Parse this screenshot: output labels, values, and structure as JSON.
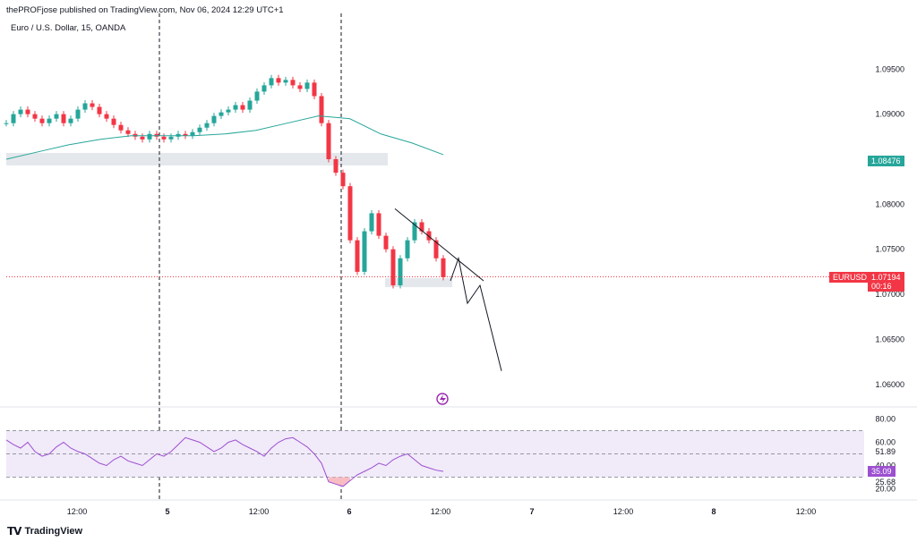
{
  "header": {
    "published": "thePROFjose published on TradingView.com, Nov 06, 2024 12:29 UTC+1",
    "symbol": "Euro / U.S. Dollar, 15, OANDA"
  },
  "footer": {
    "brand": "TradingView",
    "logo_icon": "tradingview-logo-icon"
  },
  "chart_data": [
    {
      "type": "line",
      "title": "",
      "subtitle": "Euro / U.S. Dollar, 15, OANDA",
      "x_ticks": [
        "12:00",
        "5",
        "12:00",
        "6",
        "12:00",
        "7",
        "12:00",
        "8",
        "12:00"
      ],
      "y_ticks": [
        "1.09500",
        "1.09000",
        "1.08000",
        "1.07500",
        "1.07000",
        "1.06500",
        "1.06000"
      ],
      "ylim": [
        1.0575,
        1.0985
      ],
      "session_markers": [
        "5",
        "6"
      ],
      "series": [
        {
          "kind": "candles",
          "values": [
            1.089,
            1.09,
            1.0905,
            1.09,
            1.0895,
            1.089,
            1.0895,
            1.09,
            1.089,
            1.0895,
            1.0905,
            1.0912,
            1.0908,
            1.09,
            1.0895,
            1.0888,
            1.0882,
            1.0878,
            1.0875,
            1.0872,
            1.0878,
            1.0875,
            1.0872,
            1.0875,
            1.0878,
            1.0876,
            1.088,
            1.0885,
            1.089,
            1.0898,
            1.0902,
            1.0905,
            1.091,
            1.0905,
            1.0915,
            1.0925,
            1.0932,
            1.094,
            1.0935,
            1.0938,
            1.0932,
            1.0928,
            1.0935,
            1.092,
            1.089,
            1.085,
            1.0835,
            1.082,
            1.076,
            1.0725,
            1.077,
            1.079,
            1.0765,
            1.075,
            1.071,
            1.074,
            1.076,
            1.078,
            1.077,
            1.076,
            1.074,
            1.0719
          ]
        },
        {
          "kind": "moving-average",
          "values": [
            1.085,
            1.0858,
            1.0866,
            1.0872,
            1.0876,
            1.0876,
            1.0876,
            1.0878,
            1.0882,
            1.089,
            1.0898,
            1.0895,
            1.0878,
            1.0868,
            1.0855
          ]
        }
      ],
      "last_price": {
        "label": "EURUSD",
        "value": "1.07194",
        "countdown": "00:16",
        "level": 1.07194
      },
      "ma_last": {
        "value": "1.08476",
        "level": 1.08476
      },
      "zones": [
        {
          "from": 1.0843,
          "to": 1.0857
        },
        {
          "from": 1.0708,
          "to": 1.0718
        }
      ],
      "projection_path": [
        1.0715,
        1.074,
        1.069,
        1.071,
        1.0615
      ],
      "trendline": {
        "start": 1.0795,
        "end": 1.0715
      },
      "colors": {
        "up": "#26a69a",
        "down": "#f23645",
        "ma": "#26a69a",
        "last_price": "#f23645",
        "zone": "#e4e8ec"
      }
    },
    {
      "type": "line",
      "title": "",
      "y_ticks": [
        "80.00",
        "60.00",
        "51.89",
        "40.00",
        "25.68",
        "20.00"
      ],
      "ylim": [
        15,
        85
      ],
      "band": [
        30,
        70
      ],
      "current_value": "35.09",
      "series": [
        {
          "kind": "rsi",
          "values": [
            62,
            58,
            55,
            60,
            52,
            48,
            50,
            56,
            60,
            55,
            52,
            50,
            46,
            42,
            40,
            45,
            48,
            44,
            42,
            40,
            45,
            50,
            48,
            52,
            58,
            64,
            62,
            60,
            56,
            52,
            55,
            60,
            62,
            58,
            55,
            52,
            48,
            55,
            60,
            63,
            64,
            60,
            56,
            50,
            42,
            26,
            24,
            22,
            27,
            32,
            35,
            38,
            42,
            40,
            45,
            48,
            50,
            45,
            40,
            38,
            36,
            35
          ]
        }
      ],
      "colors": {
        "line": "#9c4fd0",
        "band": "#f1eaf9",
        "oversold": "#f8bcc3",
        "badge": "#9c4fd0"
      }
    }
  ]
}
